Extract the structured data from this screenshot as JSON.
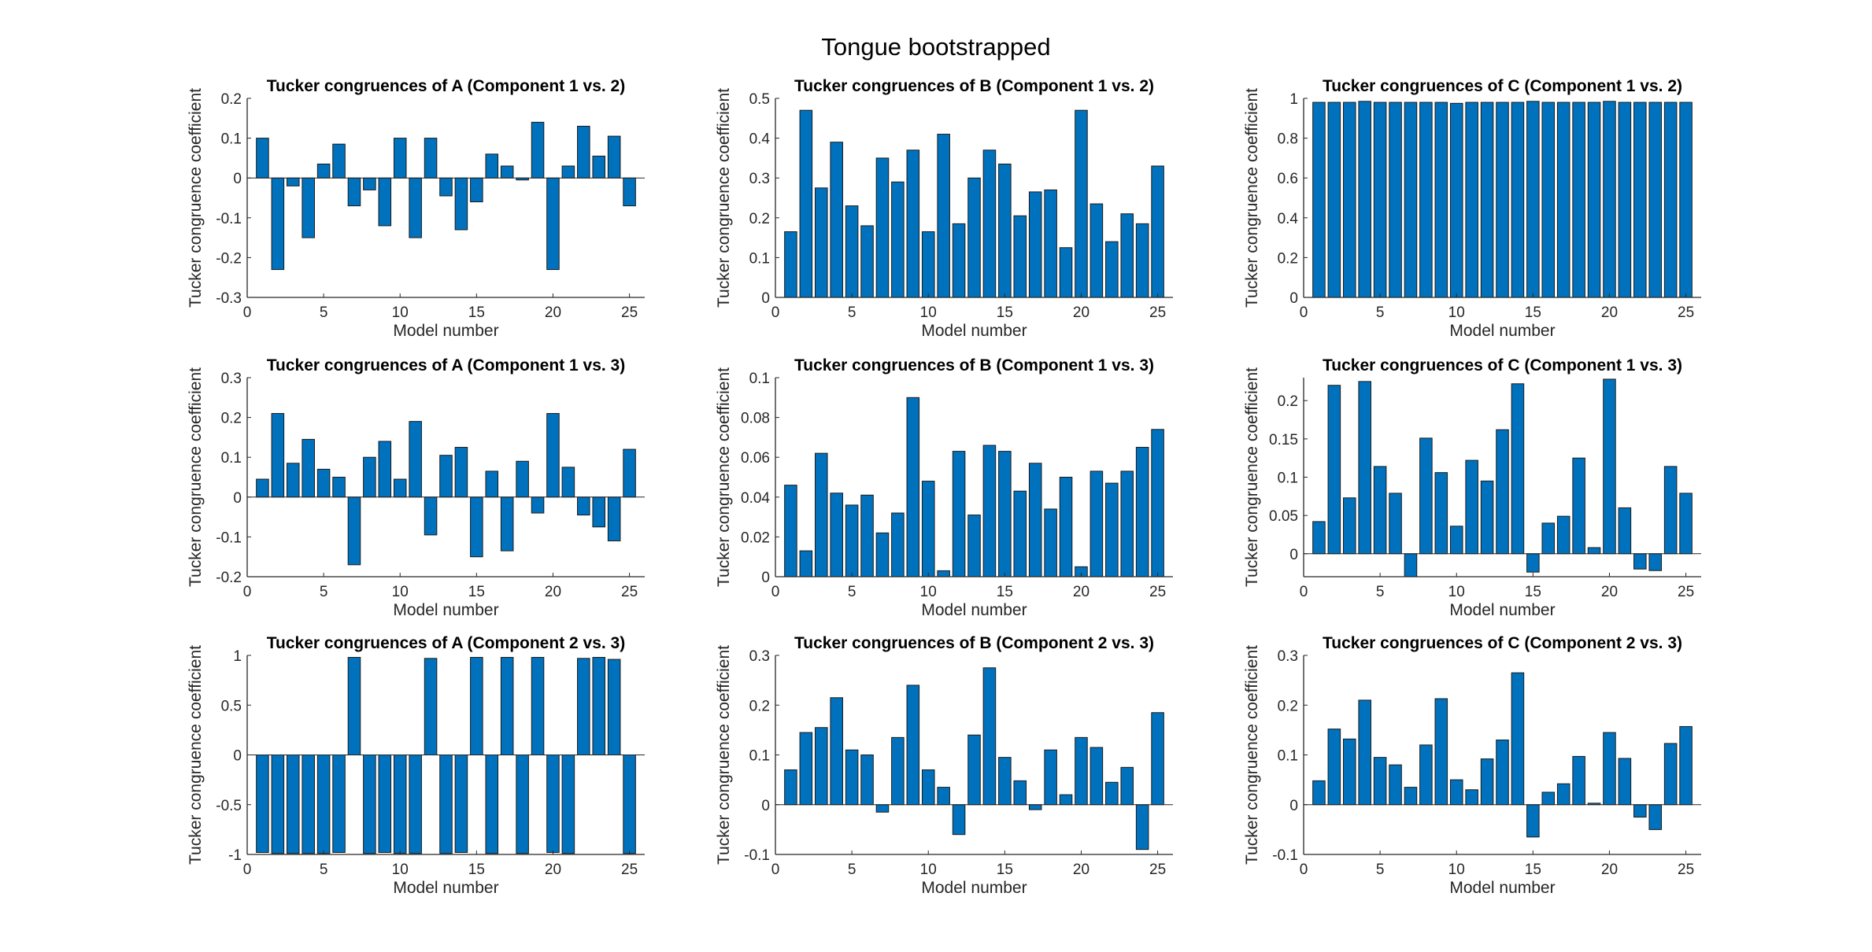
{
  "figure": {
    "title": "Tongue bootstrapped",
    "bar_color": "#0072bd",
    "bar_edge": "#1a1a1a"
  },
  "chart_data": [
    {
      "type": "bar",
      "title": "Tucker congruences of A (Component 1 vs. 2)",
      "xlabel": "Model number",
      "ylabel": "Tucker congruence coefficient",
      "x": [
        1,
        2,
        3,
        4,
        5,
        6,
        7,
        8,
        9,
        10,
        11,
        12,
        13,
        14,
        15,
        16,
        17,
        18,
        19,
        20,
        21,
        22,
        23,
        24,
        25
      ],
      "values": [
        0.1,
        -0.23,
        -0.02,
        -0.15,
        0.035,
        0.085,
        -0.07,
        -0.03,
        -0.12,
        0.1,
        -0.15,
        0.1,
        -0.045,
        -0.13,
        -0.06,
        0.06,
        0.03,
        -0.005,
        0.14,
        -0.23,
        0.03,
        0.13,
        0.055,
        0.105,
        -0.07
      ],
      "ylim": [
        -0.3,
        0.2
      ],
      "yticks": [
        -0.3,
        -0.2,
        -0.1,
        0,
        0.1,
        0.2
      ],
      "yticklabels": [
        "-0.3",
        "-0.2",
        "-0.1",
        "0",
        "0.1",
        "0.2"
      ],
      "xlim": [
        0,
        26
      ],
      "xticks": [
        0,
        5,
        10,
        15,
        20,
        25
      ],
      "xticklabels": [
        "0",
        "5",
        "10",
        "15",
        "20",
        "25"
      ]
    },
    {
      "type": "bar",
      "title": "Tucker congruences of B (Component 1 vs. 2)",
      "xlabel": "Model number",
      "ylabel": "Tucker congruence coefficient",
      "x": [
        1,
        2,
        3,
        4,
        5,
        6,
        7,
        8,
        9,
        10,
        11,
        12,
        13,
        14,
        15,
        16,
        17,
        18,
        19,
        20,
        21,
        22,
        23,
        24,
        25
      ],
      "values": [
        0.165,
        0.47,
        0.275,
        0.39,
        0.23,
        0.18,
        0.35,
        0.29,
        0.37,
        0.165,
        0.41,
        0.185,
        0.3,
        0.37,
        0.335,
        0.205,
        0.265,
        0.27,
        0.125,
        0.47,
        0.235,
        0.14,
        0.21,
        0.185,
        0.33
      ],
      "ylim": [
        0,
        0.5
      ],
      "yticks": [
        0,
        0.1,
        0.2,
        0.3,
        0.4,
        0.5
      ],
      "yticklabels": [
        "0",
        "0.1",
        "0.2",
        "0.3",
        "0.4",
        "0.5"
      ],
      "xlim": [
        0,
        26
      ],
      "xticks": [
        0,
        5,
        10,
        15,
        20,
        25
      ],
      "xticklabels": [
        "0",
        "5",
        "10",
        "15",
        "20",
        "25"
      ]
    },
    {
      "type": "bar",
      "title": "Tucker congruences of C (Component 1 vs. 2)",
      "xlabel": "Model number",
      "ylabel": "Tucker congruence coefficient",
      "x": [
        1,
        2,
        3,
        4,
        5,
        6,
        7,
        8,
        9,
        10,
        11,
        12,
        13,
        14,
        15,
        16,
        17,
        18,
        19,
        20,
        21,
        22,
        23,
        24,
        25
      ],
      "values": [
        0.98,
        0.98,
        0.98,
        0.985,
        0.98,
        0.98,
        0.98,
        0.98,
        0.98,
        0.975,
        0.98,
        0.98,
        0.98,
        0.98,
        0.985,
        0.98,
        0.98,
        0.98,
        0.98,
        0.985,
        0.98,
        0.98,
        0.98,
        0.98,
        0.98
      ],
      "ylim": [
        0,
        1
      ],
      "yticks": [
        0,
        0.2,
        0.4,
        0.6,
        0.8,
        1
      ],
      "yticklabels": [
        "0",
        "0.2",
        "0.4",
        "0.6",
        "0.8",
        "1"
      ],
      "xlim": [
        0,
        26
      ],
      "xticks": [
        0,
        5,
        10,
        15,
        20,
        25
      ],
      "xticklabels": [
        "0",
        "5",
        "10",
        "15",
        "20",
        "25"
      ]
    },
    {
      "type": "bar",
      "title": "Tucker congruences of A (Component 1 vs. 3)",
      "xlabel": "Model number",
      "ylabel": "Tucker congruence coefficient",
      "x": [
        1,
        2,
        3,
        4,
        5,
        6,
        7,
        8,
        9,
        10,
        11,
        12,
        13,
        14,
        15,
        16,
        17,
        18,
        19,
        20,
        21,
        22,
        23,
        24,
        25
      ],
      "values": [
        0.045,
        0.21,
        0.085,
        0.145,
        0.07,
        0.05,
        -0.17,
        0.1,
        0.14,
        0.045,
        0.19,
        -0.095,
        0.105,
        0.125,
        -0.15,
        0.065,
        -0.135,
        0.09,
        -0.04,
        0.21,
        0.075,
        -0.045,
        -0.075,
        -0.11,
        0.12
      ],
      "ylim": [
        -0.2,
        0.3
      ],
      "yticks": [
        -0.2,
        -0.1,
        0,
        0.1,
        0.2,
        0.3
      ],
      "yticklabels": [
        "-0.2",
        "-0.1",
        "0",
        "0.1",
        "0.2",
        "0.3"
      ],
      "xlim": [
        0,
        26
      ],
      "xticks": [
        0,
        5,
        10,
        15,
        20,
        25
      ],
      "xticklabels": [
        "0",
        "5",
        "10",
        "15",
        "20",
        "25"
      ]
    },
    {
      "type": "bar",
      "title": "Tucker congruences of B (Component 1 vs. 3)",
      "xlabel": "Model number",
      "ylabel": "Tucker congruence coefficient",
      "x": [
        1,
        2,
        3,
        4,
        5,
        6,
        7,
        8,
        9,
        10,
        11,
        12,
        13,
        14,
        15,
        16,
        17,
        18,
        19,
        20,
        21,
        22,
        23,
        24,
        25
      ],
      "values": [
        0.046,
        0.013,
        0.062,
        0.042,
        0.036,
        0.041,
        0.022,
        0.032,
        0.09,
        0.048,
        0.003,
        0.063,
        0.031,
        0.066,
        0.063,
        0.043,
        0.057,
        0.034,
        0.05,
        0.005,
        0.053,
        0.047,
        0.053,
        0.065,
        0.074
      ],
      "ylim": [
        0,
        0.1
      ],
      "yticks": [
        0,
        0.02,
        0.04,
        0.06,
        0.08,
        0.1
      ],
      "yticklabels": [
        "0",
        "0.02",
        "0.04",
        "0.06",
        "0.08",
        "0.1"
      ],
      "xlim": [
        0,
        26
      ],
      "xticks": [
        0,
        5,
        10,
        15,
        20,
        25
      ],
      "xticklabels": [
        "0",
        "5",
        "10",
        "15",
        "20",
        "25"
      ]
    },
    {
      "type": "bar",
      "title": "Tucker congruences of C (Component 1 vs. 3)",
      "xlabel": "Model number",
      "ylabel": "Tucker congruence coefficient",
      "x": [
        1,
        2,
        3,
        4,
        5,
        6,
        7,
        8,
        9,
        10,
        11,
        12,
        13,
        14,
        15,
        16,
        17,
        18,
        19,
        20,
        21,
        22,
        23,
        24,
        25
      ],
      "values": [
        0.042,
        0.22,
        0.073,
        0.225,
        0.114,
        0.079,
        -0.03,
        0.151,
        0.106,
        0.036,
        0.122,
        0.095,
        0.162,
        0.222,
        -0.024,
        0.04,
        0.049,
        0.125,
        0.008,
        0.228,
        0.06,
        -0.02,
        -0.022,
        0.114,
        0.079
      ],
      "ylim": [
        -0.03,
        0.23
      ],
      "yticks": [
        0,
        0.05,
        0.1,
        0.15,
        0.2
      ],
      "yticklabels": [
        "0",
        "0.05",
        "0.1",
        "0.15",
        "0.2"
      ],
      "xlim": [
        0,
        26
      ],
      "xticks": [
        0,
        5,
        10,
        15,
        20,
        25
      ],
      "xticklabels": [
        "0",
        "5",
        "10",
        "15",
        "20",
        "25"
      ]
    },
    {
      "type": "bar",
      "title": "Tucker congruences of A (Component 2 vs. 3)",
      "xlabel": "Model number",
      "ylabel": "Tucker congruence coefficient",
      "x": [
        1,
        2,
        3,
        4,
        5,
        6,
        7,
        8,
        9,
        10,
        11,
        12,
        13,
        14,
        15,
        16,
        17,
        18,
        19,
        20,
        21,
        22,
        23,
        24,
        25
      ],
      "values": [
        -0.98,
        -0.99,
        -0.99,
        -0.99,
        -0.99,
        -0.98,
        0.98,
        -0.99,
        -0.98,
        -0.99,
        -0.99,
        0.97,
        -0.99,
        -0.98,
        0.98,
        -0.99,
        0.98,
        -0.99,
        0.98,
        -0.98,
        -0.99,
        0.97,
        0.98,
        0.96,
        -0.99
      ],
      "ylim": [
        -1,
        1
      ],
      "yticks": [
        -1,
        -0.5,
        0,
        0.5,
        1
      ],
      "yticklabels": [
        "-1",
        "-0.5",
        "0",
        "0.5",
        "1"
      ],
      "xlim": [
        0,
        26
      ],
      "xticks": [
        0,
        5,
        10,
        15,
        20,
        25
      ],
      "xticklabels": [
        "0",
        "5",
        "10",
        "15",
        "20",
        "25"
      ]
    },
    {
      "type": "bar",
      "title": "Tucker congruences of B (Component 2 vs. 3)",
      "xlabel": "Model number",
      "ylabel": "Tucker congruence coefficient",
      "x": [
        1,
        2,
        3,
        4,
        5,
        6,
        7,
        8,
        9,
        10,
        11,
        12,
        13,
        14,
        15,
        16,
        17,
        18,
        19,
        20,
        21,
        22,
        23,
        24,
        25
      ],
      "values": [
        0.07,
        0.145,
        0.155,
        0.215,
        0.11,
        0.1,
        -0.015,
        0.135,
        0.24,
        0.07,
        0.035,
        -0.06,
        0.14,
        0.275,
        0.095,
        0.048,
        -0.01,
        0.11,
        0.02,
        0.135,
        0.115,
        0.045,
        0.075,
        -0.09,
        0.185
      ],
      "ylim": [
        -0.1,
        0.3
      ],
      "yticks": [
        -0.1,
        0,
        0.1,
        0.2,
        0.3
      ],
      "yticklabels": [
        "-0.1",
        "0",
        "0.1",
        "0.2",
        "0.3"
      ],
      "xlim": [
        0,
        26
      ],
      "xticks": [
        0,
        5,
        10,
        15,
        20,
        25
      ],
      "xticklabels": [
        "0",
        "5",
        "10",
        "15",
        "20",
        "25"
      ]
    },
    {
      "type": "bar",
      "title": "Tucker congruences of C (Component 2 vs. 3)",
      "xlabel": "Model number",
      "ylabel": "Tucker congruence coefficient",
      "x": [
        1,
        2,
        3,
        4,
        5,
        6,
        7,
        8,
        9,
        10,
        11,
        12,
        13,
        14,
        15,
        16,
        17,
        18,
        19,
        20,
        21,
        22,
        23,
        24,
        25
      ],
      "values": [
        0.048,
        0.152,
        0.132,
        0.21,
        0.095,
        0.08,
        0.035,
        0.12,
        0.213,
        0.05,
        0.03,
        0.092,
        0.13,
        0.265,
        -0.065,
        0.025,
        0.042,
        0.097,
        0.003,
        0.145,
        0.093,
        -0.025,
        -0.05,
        0.123,
        0.157
      ],
      "ylim": [
        -0.1,
        0.3
      ],
      "yticks": [
        -0.1,
        0,
        0.1,
        0.2,
        0.3
      ],
      "yticklabels": [
        "-0.1",
        "0",
        "0.1",
        "0.2",
        "0.3"
      ],
      "xlim": [
        0,
        26
      ],
      "xticks": [
        0,
        5,
        10,
        15,
        20,
        25
      ],
      "xticklabels": [
        "0",
        "5",
        "10",
        "15",
        "20",
        "25"
      ]
    }
  ]
}
